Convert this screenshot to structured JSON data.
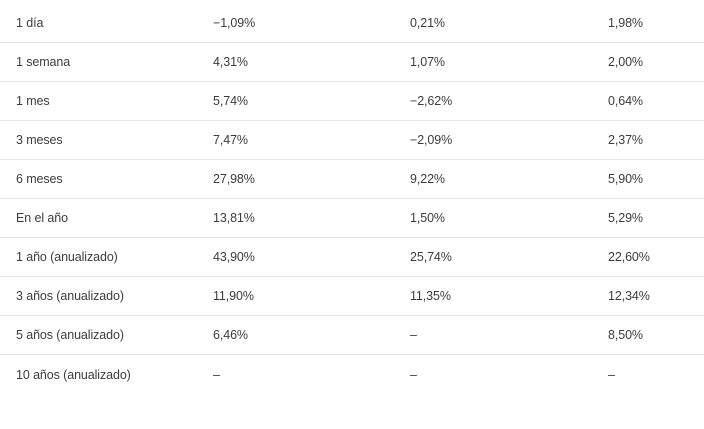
{
  "returns_table": {
    "rows": [
      {
        "period": "1 día",
        "fund": "−1,09%",
        "index": "0,21%",
        "category": "1,98%"
      },
      {
        "period": "1 semana",
        "fund": "4,31%",
        "index": "1,07%",
        "category": "2,00%"
      },
      {
        "period": "1 mes",
        "fund": "5,74%",
        "index": "−2,62%",
        "category": "0,64%"
      },
      {
        "period": "3 meses",
        "fund": "7,47%",
        "index": "−2,09%",
        "category": "2,37%"
      },
      {
        "period": "6 meses",
        "fund": "27,98%",
        "index": "9,22%",
        "category": "5,90%"
      },
      {
        "period": "En el año",
        "fund": "13,81%",
        "index": "1,50%",
        "category": "5,29%"
      },
      {
        "period": "1 año (anualizado)",
        "fund": "43,90%",
        "index": "25,74%",
        "category": "22,60%"
      },
      {
        "period": "3 años (anualizado)",
        "fund": "11,90%",
        "index": "11,35%",
        "category": "12,34%"
      },
      {
        "period": "5 años (anualizado)",
        "fund": "6,46%",
        "index": "–",
        "category": "8,50%"
      },
      {
        "period": "10 años (anualizado)",
        "fund": "–",
        "index": "–",
        "category": "–"
      }
    ]
  },
  "colors": {
    "text": "#3c3c3c",
    "divider": "#e4e4e4",
    "background": "#ffffff"
  }
}
